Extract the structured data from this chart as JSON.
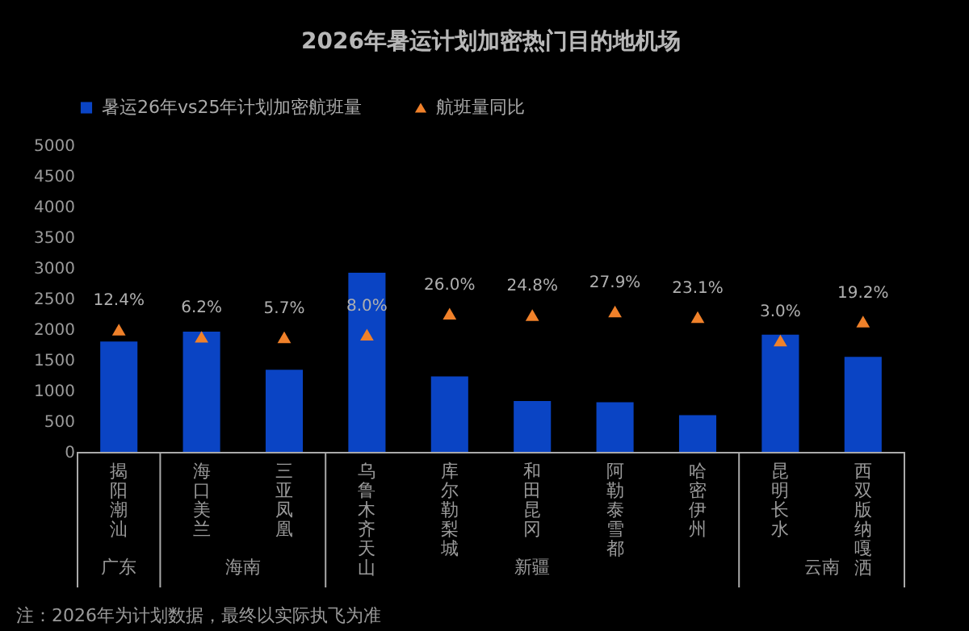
{
  "chart_data": {
    "type": "bar",
    "title": "2026年暑运计划加密热门目的地机场",
    "categories": [
      "揭阳潮汕",
      "海口美兰",
      "三亚凤凰",
      "乌鲁木齐天山",
      "库尔勒梨城",
      "和田昆冈",
      "阿勒泰雪都",
      "哈密伊州",
      "昆明长水",
      "西双版纳嘎洒"
    ],
    "series": [
      {
        "name": "暑运26年vs25年计划加密航班量",
        "color": "#0a44c4",
        "values": [
          1800,
          1960,
          1340,
          2920,
          1230,
          830,
          810,
          600,
          1910,
          1550
        ]
      },
      {
        "name": "航班量同比",
        "type": "scatter",
        "axis": "y2",
        "marker": "triangle",
        "color": "#f0812a",
        "values": [
          12.4,
          6.2,
          5.7,
          8.0,
          26.0,
          24.8,
          27.9,
          23.1,
          3.0,
          19.2
        ],
        "value_labels": [
          "12.4%",
          "6.2%",
          "5.7%",
          "8.0%",
          "26.0%",
          "24.8%",
          "27.9%",
          "23.1%",
          "3.0%",
          "19.2%"
        ]
      }
    ],
    "ylim": [
      0,
      5000
    ],
    "yticks": [
      0,
      500,
      1000,
      1500,
      2000,
      2500,
      3000,
      3500,
      4000,
      4500,
      5000
    ],
    "legend": "top",
    "annotations": [
      "广东",
      "海南",
      "新疆",
      "云南",
      "注：2026年为计划数据，最终以实际执飞为准"
    ]
  }
}
